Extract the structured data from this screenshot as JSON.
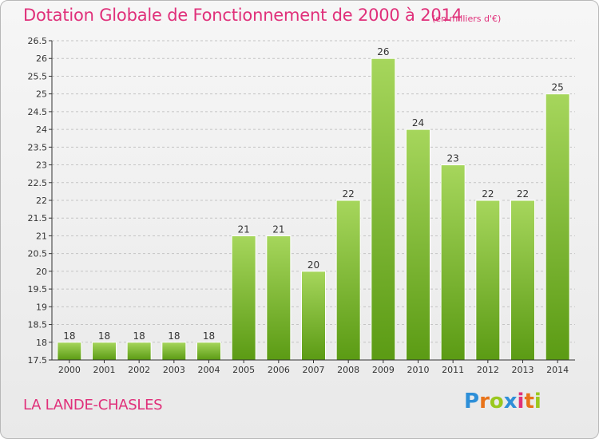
{
  "header": {
    "title": "Dotation Globale de Fonctionnement de 2000 à 2014",
    "unit": "(en milliers d'€)"
  },
  "footer": {
    "place": "LA LANDE-CHASLES",
    "logo": "Proxiti",
    "logo_colors": [
      "#2e8fd8",
      "#e8731a",
      "#9ac81e",
      "#2e8fd8",
      "#e0307a",
      "#e8731a",
      "#9ac81e"
    ]
  },
  "colors": {
    "accent": "#e0307a",
    "bar_top": "#9fd253",
    "bar_bottom": "#5d9e16",
    "axis": "#333333"
  },
  "chart_data": {
    "type": "bar",
    "title": "Dotation Globale de Fonctionnement de 2000 à 2014",
    "subtitle": "(en milliers d'€)",
    "categories": [
      "2000",
      "2001",
      "2002",
      "2003",
      "2004",
      "2005",
      "2006",
      "2007",
      "2008",
      "2009",
      "2010",
      "2011",
      "2012",
      "2013",
      "2014"
    ],
    "values": [
      18,
      18,
      18,
      18,
      18,
      21,
      21,
      20,
      22,
      26,
      24,
      23,
      22,
      22,
      25
    ],
    "labels": [
      "18",
      "18",
      "18",
      "18",
      "18",
      "21",
      "21",
      "20",
      "22",
      "26",
      "24",
      "23",
      "22",
      "22",
      "25"
    ],
    "ylim": [
      17.5,
      26.5
    ],
    "yticks": [
      "17.5",
      "18",
      "18.5",
      "19",
      "19.5",
      "20",
      "20.5",
      "21",
      "21.5",
      "22",
      "22.5",
      "23",
      "23.5",
      "24",
      "24.5",
      "25",
      "25.5",
      "26",
      "26.5"
    ],
    "grid": "horizontal-dashed",
    "legend": "none"
  }
}
